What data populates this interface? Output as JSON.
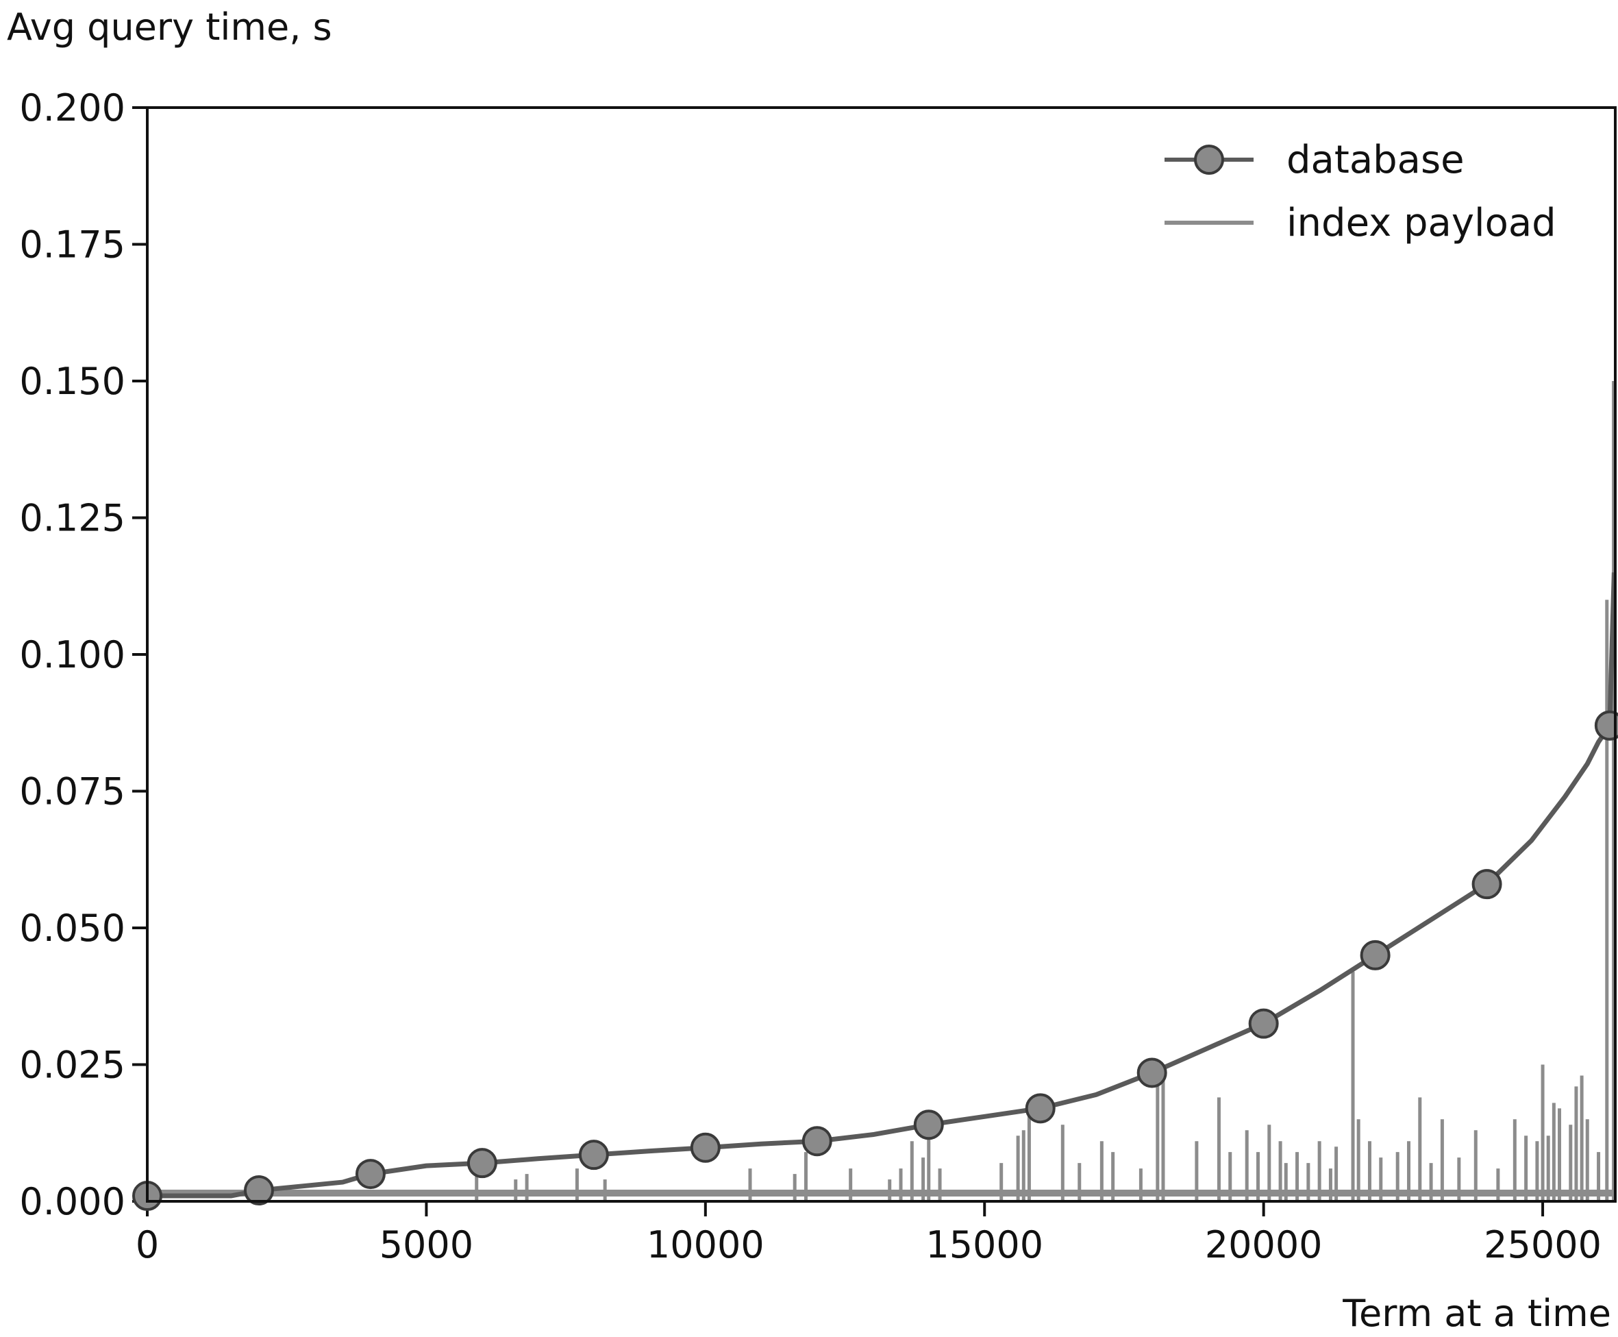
{
  "chart_data": {
    "type": "line",
    "title": "",
    "ylabel": "Avg query time, s",
    "xlabel": "Term at a time",
    "xlim": [
      0,
      26300
    ],
    "ylim": [
      0,
      0.2
    ],
    "xticks": [
      0,
      5000,
      10000,
      15000,
      20000,
      25000
    ],
    "xtick_labels": [
      "0",
      "5000",
      "10000",
      "15000",
      "20000",
      "25000"
    ],
    "yticks": [
      0,
      0.025,
      0.05,
      0.075,
      0.1,
      0.125,
      0.15,
      0.175,
      0.2
    ],
    "ytick_labels": [
      "0.000",
      "0.025",
      "0.050",
      "0.075",
      "0.100",
      "0.125",
      "0.150",
      "0.175",
      "0.200"
    ],
    "legend_position": "top-right",
    "series": [
      {
        "name": "database",
        "style": "line-with-circle-markers",
        "color": "#5a5a5a",
        "x": [
          0,
          2000,
          4000,
          6000,
          8000,
          10000,
          12000,
          14000,
          16000,
          18000,
          20000,
          22000,
          24000,
          26200
        ],
        "y": [
          0.001,
          0.002,
          0.005,
          0.007,
          0.0085,
          0.0098,
          0.011,
          0.014,
          0.017,
          0.0235,
          0.0325,
          0.045,
          0.058,
          0.087
        ],
        "line_x": [
          0,
          1500,
          2000,
          3000,
          3500,
          4000,
          5000,
          6000,
          7000,
          8000,
          9000,
          10000,
          11000,
          12000,
          13000,
          14000,
          15000,
          16000,
          17000,
          18000,
          19000,
          20000,
          21000,
          22000,
          23000,
          24000,
          24800,
          25400,
          25800,
          26000,
          26200,
          26280
        ],
        "line_y": [
          0.001,
          0.001,
          0.002,
          0.003,
          0.0035,
          0.005,
          0.0065,
          0.007,
          0.0078,
          0.0085,
          0.0092,
          0.0098,
          0.0105,
          0.011,
          0.0122,
          0.014,
          0.0155,
          0.017,
          0.0195,
          0.0235,
          0.028,
          0.0325,
          0.0385,
          0.045,
          0.0515,
          0.058,
          0.066,
          0.074,
          0.08,
          0.084,
          0.087,
          0.115
        ]
      },
      {
        "name": "index payload",
        "style": "spikes",
        "color": "#8c8c8c",
        "baseline": 0.0015,
        "spike_x": [
          5900,
          6600,
          6800,
          7700,
          8200,
          10800,
          11600,
          11800,
          12600,
          13300,
          13500,
          13700,
          13900,
          14000,
          14200,
          15300,
          15600,
          15700,
          15800,
          16400,
          16700,
          17100,
          17300,
          17800,
          18100,
          18200,
          18800,
          19200,
          19400,
          19700,
          19900,
          20100,
          20300,
          20400,
          20600,
          20800,
          21000,
          21200,
          21300,
          21600,
          21700,
          21900,
          22100,
          22400,
          22600,
          22800,
          23000,
          23200,
          23500,
          23800,
          24200,
          24500,
          24700,
          24900,
          25000,
          25100,
          25200,
          25300,
          25500,
          25600,
          25700,
          25800,
          26000,
          26150,
          26270
        ],
        "spike_y": [
          0.008,
          0.004,
          0.005,
          0.006,
          0.004,
          0.006,
          0.005,
          0.009,
          0.006,
          0.004,
          0.006,
          0.011,
          0.008,
          0.014,
          0.006,
          0.007,
          0.012,
          0.013,
          0.017,
          0.014,
          0.007,
          0.011,
          0.009,
          0.006,
          0.022,
          0.023,
          0.011,
          0.019,
          0.009,
          0.013,
          0.009,
          0.014,
          0.011,
          0.007,
          0.009,
          0.007,
          0.011,
          0.006,
          0.01,
          0.042,
          0.015,
          0.011,
          0.008,
          0.009,
          0.011,
          0.019,
          0.007,
          0.015,
          0.008,
          0.013,
          0.006,
          0.015,
          0.012,
          0.011,
          0.025,
          0.012,
          0.018,
          0.017,
          0.014,
          0.021,
          0.023,
          0.015,
          0.009,
          0.11,
          0.15
        ]
      }
    ]
  }
}
